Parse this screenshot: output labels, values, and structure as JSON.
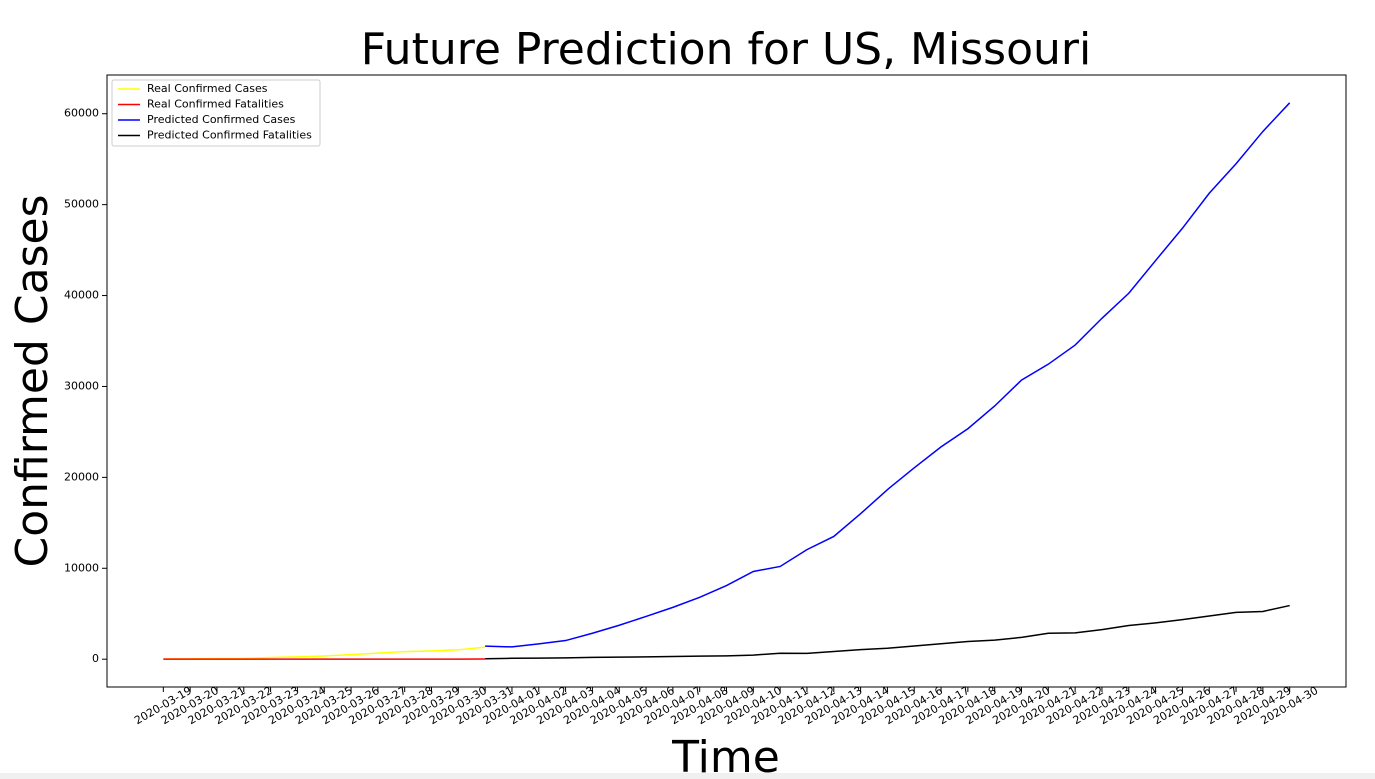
{
  "chart_data": {
    "type": "line",
    "title": "Future Prediction for US, Missouri",
    "xlabel": "Time",
    "ylabel": "Confirmed Cases",
    "categories": [
      "2020-03-19",
      "2020-03-20",
      "2020-03-21",
      "2020-03-22",
      "2020-03-23",
      "2020-03-24",
      "2020-03-25",
      "2020-03-26",
      "2020-03-27",
      "2020-03-28",
      "2020-03-29",
      "2020-03-30",
      "2020-03-31",
      "2020-04-01",
      "2020-04-02",
      "2020-04-03",
      "2020-04-04",
      "2020-04-05",
      "2020-04-06",
      "2020-04-07",
      "2020-04-08",
      "2020-04-09",
      "2020-04-10",
      "2020-04-11",
      "2020-04-12",
      "2020-04-13",
      "2020-04-14",
      "2020-04-15",
      "2020-04-16",
      "2020-04-17",
      "2020-04-18",
      "2020-04-19",
      "2020-04-20",
      "2020-04-21",
      "2020-04-22",
      "2020-04-23",
      "2020-04-24",
      "2020-04-25",
      "2020-04-26",
      "2020-04-27",
      "2020-04-28",
      "2020-04-29",
      "2020-04-30"
    ],
    "series": [
      {
        "name": "Real Confirmed Cases",
        "color": "#ffff00",
        "values": [
          15,
          28,
          73,
          90,
          183,
          255,
          356,
          502,
          670,
          838,
          903,
          1031,
          1327,
          null,
          null,
          null,
          null,
          null,
          null,
          null,
          null,
          null,
          null,
          null,
          null,
          null,
          null,
          null,
          null,
          null,
          null,
          null,
          null,
          null,
          null,
          null,
          null,
          null,
          null,
          null,
          null,
          null,
          null
        ]
      },
      {
        "name": "Real Confirmed Fatalities",
        "color": "#ff0000",
        "values": [
          0,
          0,
          3,
          3,
          3,
          3,
          4,
          5,
          9,
          10,
          12,
          13,
          14,
          null,
          null,
          null,
          null,
          null,
          null,
          null,
          null,
          null,
          null,
          null,
          null,
          null,
          null,
          null,
          null,
          null,
          null,
          null,
          null,
          null,
          null,
          null,
          null,
          null,
          null,
          null,
          null,
          null,
          null
        ]
      },
      {
        "name": "Predicted Confirmed Cases",
        "color": "#0000ff",
        "values": [
          null,
          null,
          null,
          null,
          null,
          null,
          null,
          null,
          null,
          null,
          null,
          null,
          1430,
          1350,
          1680,
          2050,
          2850,
          3730,
          4700,
          5700,
          6800,
          8100,
          9650,
          10200,
          12050,
          13500,
          16000,
          18650,
          21050,
          23350,
          25350,
          27850,
          30700,
          32450,
          34550,
          37500,
          40250,
          43850,
          47400,
          51250,
          54500,
          58050,
          61200
        ]
      },
      {
        "name": "Predicted Confirmed Fatalities",
        "color": "#000000",
        "values": [
          null,
          null,
          null,
          null,
          null,
          null,
          null,
          null,
          null,
          null,
          null,
          null,
          50,
          100,
          120,
          150,
          200,
          220,
          250,
          300,
          330,
          360,
          450,
          650,
          640,
          850,
          1050,
          1200,
          1450,
          1700,
          1950,
          2100,
          2400,
          2850,
          2900,
          3250,
          3700,
          4000,
          4350,
          4750,
          5150,
          5250,
          5900
        ]
      }
    ],
    "ylim": [
      -3060,
      64260
    ],
    "yticks": [
      0,
      10000,
      20000,
      30000,
      40000,
      50000,
      60000
    ],
    "legend": "upper left"
  }
}
